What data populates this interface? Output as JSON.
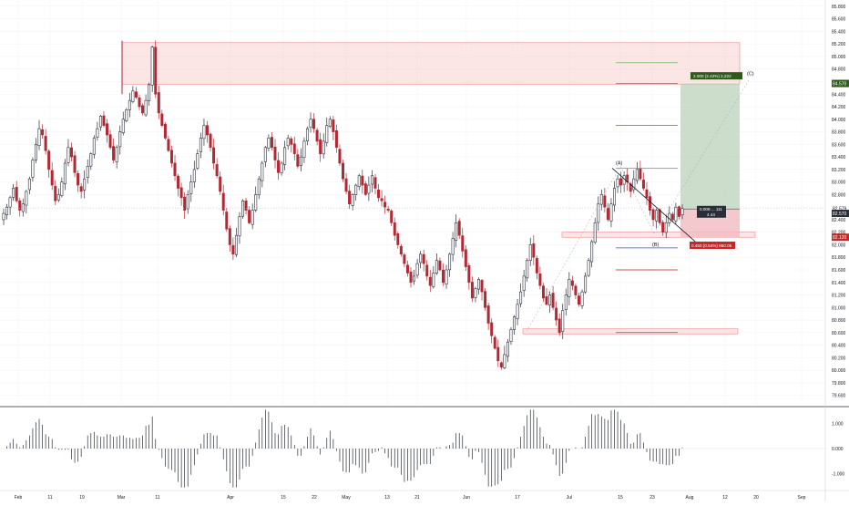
{
  "colors": {
    "up": "#2a2e39",
    "down": "#b22833",
    "background": "#ffffff",
    "grid": "#f0f3fa",
    "separator": "#2a2e39",
    "axis_text": "#131722",
    "supply_zone": "#f8cfcf",
    "supply_zone_border": "#e57373",
    "profit_fill": "#b7d0b5",
    "stop_fill": "#f1bcc0",
    "target_label_bg": "#2e5a1c",
    "entry_label_bg": "#2a2e39",
    "stop_label_bg": "#c62828",
    "line_green": "#4caf50",
    "line_red": "#b71c1c",
    "line_blue": "#3f51b5",
    "line_gray": "#8a8a8a"
  },
  "price_labels": {
    "target": "84.570",
    "current": "82.579",
    "countdown": "49:42",
    "entry": "82.570",
    "stop": "82.120"
  },
  "position_labels": {
    "target_text": "2.000 (2.42%) 2,222",
    "entry_text_1": "0.009 ... 111",
    "entry_text_2": "4.44",
    "stop_text": "0.450 (0.54%) 950.05"
  },
  "wave_labels": {
    "a": "(A)",
    "b": "(B)",
    "c": "(C)"
  },
  "chart_data": [
    {
      "type": "candlestick",
      "title": "",
      "xlabel": "",
      "ylabel": "",
      "x_ticks": [
        "Feb",
        "11",
        "19",
        "Mar",
        "11",
        "Apr",
        "15",
        "22",
        "May",
        "13",
        "21",
        "Jun",
        "17",
        "Jul",
        "15",
        "23",
        "Aug",
        "12",
        "20",
        "Sep"
      ],
      "y_ticks": [
        "79.600",
        "79.800",
        "80.000",
        "80.200",
        "80.400",
        "80.600",
        "80.800",
        "81.000",
        "81.200",
        "81.400",
        "81.600",
        "81.800",
        "82.000",
        "82.200",
        "82.400",
        "82.600",
        "82.800",
        "83.000",
        "83.200",
        "83.400",
        "83.600",
        "83.800",
        "84.000",
        "84.200",
        "84.400",
        "84.600",
        "84.800",
        "85.000",
        "85.200",
        "85.400",
        "85.600",
        "85.800"
      ],
      "ylim": [
        79.45,
        85.9
      ],
      "grid": true,
      "approx_closes": [
        82.5,
        82.6,
        82.75,
        82.9,
        82.7,
        82.55,
        82.65,
        82.85,
        83.05,
        83.35,
        83.6,
        83.85,
        83.75,
        83.5,
        83.2,
        82.95,
        82.7,
        82.8,
        83.0,
        83.3,
        83.55,
        83.4,
        83.15,
        82.95,
        82.85,
        83.05,
        83.25,
        83.45,
        83.7,
        83.85,
        84.05,
        83.9,
        83.75,
        83.55,
        83.35,
        83.55,
        83.8,
        84.0,
        84.15,
        84.3,
        84.45,
        84.35,
        84.2,
        84.1,
        84.3,
        84.55,
        85.15,
        84.4,
        84.1,
        83.9,
        83.7,
        83.5,
        83.3,
        83.1,
        82.9,
        82.75,
        82.55,
        82.8,
        83.0,
        83.2,
        83.45,
        83.7,
        83.9,
        83.75,
        83.55,
        83.3,
        83.1,
        82.85,
        82.55,
        82.25,
        82.0,
        81.85,
        82.15,
        82.45,
        82.7,
        82.55,
        82.35,
        82.55,
        82.8,
        83.05,
        83.3,
        83.55,
        83.7,
        83.55,
        83.35,
        83.15,
        83.3,
        83.55,
        83.7,
        83.6,
        83.45,
        83.25,
        83.4,
        83.65,
        83.85,
        84.0,
        83.85,
        83.65,
        83.45,
        83.65,
        83.9,
        84.0,
        83.8,
        83.55,
        83.3,
        83.05,
        82.85,
        82.65,
        82.8,
        82.95,
        83.1,
        82.95,
        82.8,
        82.95,
        83.1,
        82.9,
        82.75,
        82.7,
        82.6,
        82.55,
        82.35,
        82.15,
        82.0,
        81.85,
        81.7,
        81.55,
        81.4,
        81.5,
        81.7,
        81.85,
        81.7,
        81.5,
        81.35,
        81.55,
        81.75,
        81.6,
        81.4,
        81.6,
        81.85,
        82.1,
        82.35,
        82.15,
        81.9,
        81.65,
        81.4,
        81.15,
        81.3,
        81.45,
        81.25,
        81.0,
        80.75,
        80.55,
        80.35,
        80.15,
        80.05,
        80.25,
        80.45,
        80.65,
        80.85,
        81.05,
        81.25,
        81.5,
        81.75,
        82.0,
        81.8,
        81.55,
        81.35,
        81.15,
        81.05,
        81.2,
        81.0,
        80.8,
        80.6,
        80.95,
        81.2,
        81.45,
        81.35,
        81.2,
        81.05,
        81.25,
        81.5,
        81.75,
        82.05,
        82.35,
        82.65,
        82.8,
        82.6,
        82.4,
        82.65,
        82.9,
        83.05,
        82.95,
        83.1,
        83.0,
        82.85,
        83.05,
        83.2,
        83.05,
        82.9,
        82.75,
        82.55,
        82.4,
        82.55,
        82.35,
        82.2,
        82.35,
        82.5,
        82.4,
        82.6,
        82.45,
        82.579
      ]
    },
    {
      "type": "bar",
      "title": "",
      "y_ticks": [
        "-1.000",
        "0.000",
        "1.000"
      ],
      "ylim": [
        -1.6,
        1.6
      ],
      "values": "derived from price panel closes (momentum histogram)"
    }
  ]
}
